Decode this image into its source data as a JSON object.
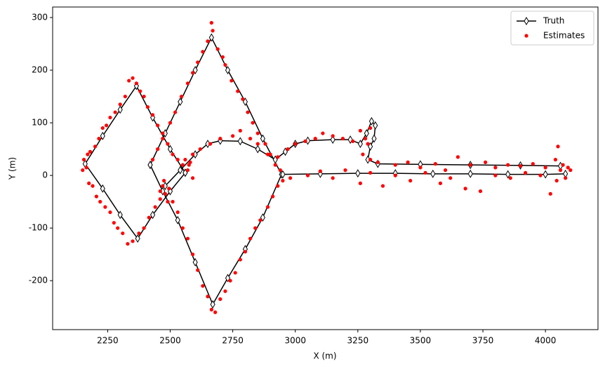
{
  "chart_data": {
    "type": "line-scatter",
    "xlabel": "X (m)",
    "ylabel": "Y (m)",
    "xlim": [
      2030,
      4210
    ],
    "ylim": [
      -293,
      320
    ],
    "xticks": [
      2250,
      2500,
      2750,
      3000,
      3250,
      3500,
      3750,
      4000
    ],
    "yticks": [
      -200,
      -100,
      0,
      100,
      200,
      300
    ],
    "grid": false,
    "legend": "upper right",
    "series": [
      {
        "name": "Truth",
        "color": "#000000",
        "style": "line-diamond",
        "x": [
          2560,
          2500,
          2430,
          2365,
          2300,
          2230,
          2160,
          2230,
          2300,
          2370,
          2430,
          2500,
          2560,
          null,
          2420,
          2480,
          2540,
          2600,
          2665,
          2730,
          2800,
          2870,
          2945,
          2870,
          2800,
          2730,
          2670,
          2600,
          2530,
          2470,
          2420,
          null,
          2480,
          2540,
          2600,
          2650,
          2700,
          2780,
          2850,
          2920,
          2960,
          3000,
          3050,
          3150,
          3220,
          3260,
          3285,
          3305,
          3320,
          3315,
          3300,
          3290,
          3330,
          3500,
          3700,
          3900,
          4060,
          null,
          2950,
          3100,
          3250,
          3400,
          3550,
          3700,
          3850,
          4000,
          4080
        ],
        "values": [
          5,
          50,
          110,
          170,
          125,
          75,
          22,
          -25,
          -75,
          -120,
          -75,
          -30,
          5,
          null,
          20,
          80,
          140,
          200,
          262,
          200,
          140,
          70,
          2,
          -80,
          -140,
          -195,
          -245,
          -165,
          -85,
          -30,
          20,
          null,
          -20,
          10,
          40,
          60,
          66,
          65,
          50,
          30,
          45,
          60,
          66,
          68,
          68,
          60,
          80,
          103,
          95,
          70,
          55,
          30,
          22,
          21,
          20,
          19,
          18,
          null,
          2,
          3,
          4,
          4,
          3,
          3,
          2,
          2,
          3
        ]
      },
      {
        "name": "Estimates",
        "color": "#ff0000",
        "style": "dots",
        "x": [
          2155,
          2165,
          2170,
          2150,
          2180,
          2200,
          2215,
          2230,
          2245,
          2260,
          2280,
          2300,
          2320,
          2335,
          2350,
          2365,
          2380,
          2395,
          2410,
          2430,
          2450,
          2470,
          2490,
          2510,
          2530,
          2550,
          2570,
          2580,
          2590,
          2175,
          2190,
          2205,
          2220,
          2240,
          2260,
          2275,
          2290,
          2310,
          2330,
          2350,
          2375,
          2395,
          2415,
          2440,
          2460,
          2480,
          2495,
          2470,
          2460,
          2490,
          2475,
          2430,
          2450,
          2470,
          2500,
          2520,
          2545,
          2570,
          2590,
          2610,
          2630,
          2650,
          2665,
          2670,
          2690,
          2710,
          2720,
          2745,
          2770,
          2790,
          2810,
          2830,
          2850,
          2880,
          2900,
          2920,
          2940,
          2950,
          2930,
          2910,
          2890,
          2860,
          2840,
          2820,
          2800,
          2780,
          2760,
          2740,
          2720,
          2700,
          2680,
          2665,
          2650,
          2630,
          2610,
          2590,
          2570,
          2550,
          2530,
          2510,
          2560,
          2575,
          2590,
          2620,
          2660,
          2700,
          2750,
          2780,
          2820,
          2850,
          2890,
          2930,
          2970,
          3000,
          3040,
          3080,
          3110,
          3150,
          3190,
          3230,
          3260,
          3280,
          3300,
          3290,
          3270,
          3300,
          3330,
          3400,
          3450,
          3500,
          3560,
          3600,
          3650,
          3700,
          3760,
          3800,
          3850,
          3900,
          3950,
          4000,
          4020,
          4040,
          4050,
          4060,
          4070,
          4080,
          4090,
          4100,
          4045,
          2980,
          3050,
          3100,
          3150,
          3200,
          3260,
          3300,
          3350,
          3400,
          3460,
          3520,
          3580,
          3620,
          3680,
          3740,
          3800,
          3860,
          3920,
          3980
        ],
        "values": [
          30,
          15,
          40,
          10,
          45,
          55,
          70,
          90,
          95,
          110,
          120,
          135,
          150,
          180,
          185,
          175,
          160,
          150,
          130,
          115,
          95,
          80,
          60,
          40,
          30,
          20,
          10,
          25,
          -5,
          -15,
          -20,
          -40,
          -50,
          -60,
          -70,
          -90,
          -100,
          -110,
          -130,
          -125,
          -110,
          -100,
          -80,
          -60,
          -45,
          -35,
          -25,
          -20,
          -30,
          -50,
          -10,
          30,
          50,
          70,
          100,
          120,
          150,
          175,
          195,
          215,
          235,
          255,
          290,
          275,
          240,
          225,
          210,
          180,
          160,
          145,
          120,
          100,
          80,
          60,
          40,
          20,
          10,
          -10,
          -20,
          -40,
          -60,
          -85,
          -100,
          -120,
          -145,
          -160,
          -185,
          -200,
          -220,
          -235,
          -260,
          -255,
          -230,
          -210,
          -180,
          -150,
          -120,
          -100,
          -70,
          -50,
          30,
          20,
          40,
          50,
          60,
          70,
          75,
          85,
          70,
          60,
          40,
          35,
          50,
          60,
          65,
          70,
          80,
          75,
          70,
          65,
          85,
          70,
          90,
          60,
          40,
          30,
          25,
          20,
          25,
          15,
          22,
          10,
          35,
          20,
          25,
          15,
          20,
          18,
          22,
          15,
          -35,
          30,
          55,
          10,
          20,
          -5,
          15,
          10,
          -10,
          -5,
          0,
          8,
          -5,
          10,
          -15,
          5,
          -20,
          0,
          -10,
          5,
          -15,
          -5,
          -25,
          -30,
          0,
          -5,
          5,
          0
        ]
      }
    ]
  }
}
